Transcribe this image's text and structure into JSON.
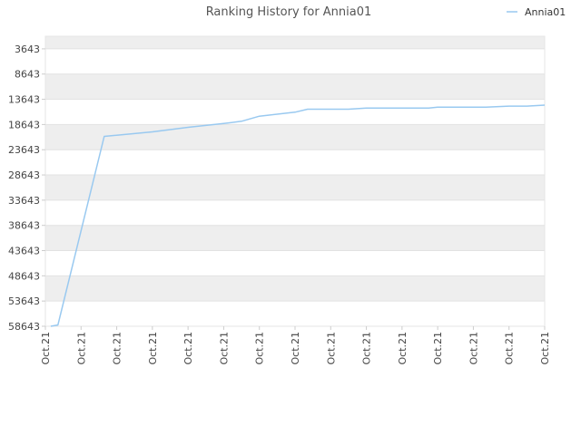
{
  "chart_data": {
    "type": "line",
    "title": "Ranking History for Annia01",
    "xlabel": "",
    "ylabel": "",
    "y_reversed": true,
    "ylim": [
      58643,
      1143
    ],
    "y_ticks": [
      3643,
      8643,
      13643,
      18643,
      23643,
      28643,
      33643,
      38643,
      43643,
      48643,
      53643,
      58643
    ],
    "x_tick_labels": [
      "Oct.21",
      "Oct.21",
      "Oct.21",
      "Oct.21",
      "Oct.21",
      "Oct.21",
      "Oct.21",
      "Oct.21",
      "Oct.21",
      "Oct.21",
      "Oct.21",
      "Oct.21",
      "Oct.21",
      "Oct.21",
      "Oct.21"
    ],
    "grid": true,
    "band_colors": [
      "#eeeeee",
      "#ffffff"
    ],
    "legend_position": "top-right",
    "series": [
      {
        "name": "Annia01",
        "color": "#99c9f0",
        "x": [
          0.15,
          0.35,
          1.65,
          3.0,
          4.0,
          5.0,
          5.5,
          6.0,
          7.0,
          7.35,
          8.5,
          9.0,
          10.0,
          10.75,
          11.0,
          12.0,
          12.35,
          13.0,
          13.5,
          14.0
        ],
        "values": [
          58643,
          58400,
          21000,
          20100,
          19200,
          18450,
          18000,
          17000,
          16200,
          15600,
          15600,
          15400,
          15400,
          15400,
          15200,
          15200,
          15200,
          15000,
          15000,
          14800
        ]
      }
    ]
  }
}
